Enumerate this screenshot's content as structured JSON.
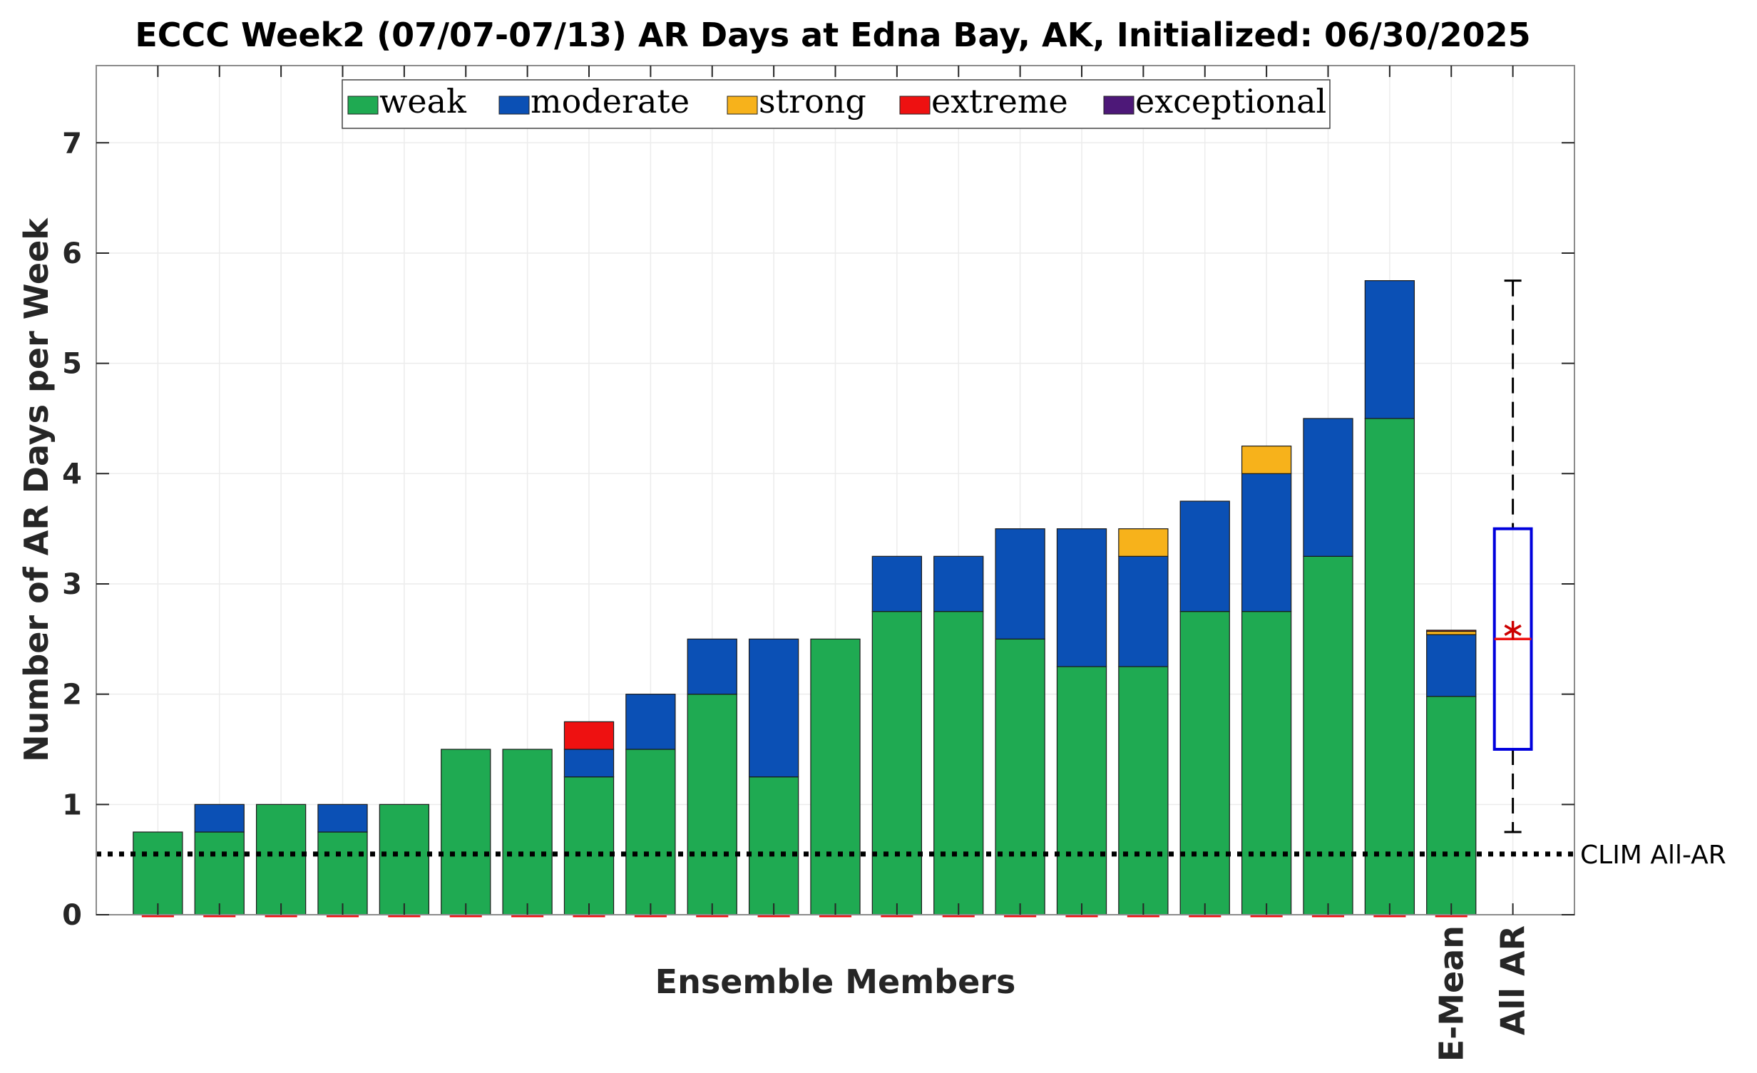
{
  "chart_data": {
    "type": "bar",
    "stacked": true,
    "title": "ECCC Week2 (07/07-07/13) AR Days at Edna Bay, AK, Initialized: 06/30/2025",
    "xlabel": "Ensemble Members",
    "ylabel": "Number of AR Days per Week",
    "ylim": [
      0,
      7.7
    ],
    "yticks": [
      0,
      1,
      2,
      3,
      4,
      5,
      6,
      7
    ],
    "grid": true,
    "legend_position": "top-center",
    "categories": [
      "",
      "",
      "",
      "",
      "",
      "",
      "",
      "",
      "",
      "",
      "",
      "",
      "",
      "",
      "",
      "",
      "",
      "",
      "",
      "",
      "",
      "E-Mean"
    ],
    "series": [
      {
        "name": "weak",
        "color": "#1FAA52",
        "values": [
          0.75,
          0.75,
          1.0,
          0.75,
          1.0,
          1.5,
          1.5,
          1.25,
          1.5,
          2.0,
          1.25,
          2.5,
          2.75,
          2.75,
          2.5,
          2.25,
          2.25,
          2.75,
          2.75,
          3.25,
          4.5,
          1.98
        ]
      },
      {
        "name": "moderate",
        "color": "#0B50B5",
        "values": [
          0,
          0.25,
          0,
          0.25,
          0,
          0,
          0,
          0.25,
          0.5,
          0.5,
          1.25,
          0,
          0.5,
          0.5,
          1.0,
          1.25,
          1.0,
          1.0,
          1.25,
          1.25,
          1.25,
          0.56
        ]
      },
      {
        "name": "strong",
        "color": "#F7B21B",
        "values": [
          0,
          0,
          0,
          0,
          0,
          0,
          0,
          0,
          0,
          0,
          0,
          0,
          0,
          0,
          0,
          0,
          0.25,
          0,
          0.25,
          0,
          0,
          0.03
        ]
      },
      {
        "name": "extreme",
        "color": "#EE1111",
        "values": [
          0,
          0,
          0,
          0,
          0,
          0,
          0,
          0.25,
          0,
          0,
          0,
          0,
          0,
          0,
          0,
          0,
          0,
          0,
          0,
          0,
          0,
          0.01
        ]
      },
      {
        "name": "exceptional",
        "color": "#4D1878",
        "values": [
          0,
          0,
          0,
          0,
          0,
          0,
          0,
          0,
          0,
          0,
          0,
          0,
          0,
          0,
          0,
          0,
          0,
          0,
          0,
          0,
          0,
          0
        ]
      }
    ],
    "boxplot": {
      "label": "All AR",
      "min": 0.75,
      "q1": 1.5,
      "median": 2.5,
      "q3": 3.5,
      "max": 5.75,
      "mean": 2.58,
      "box_color": "#0000DD",
      "median_color": "#EE1111",
      "mean_marker_color": "#CC0000"
    },
    "reference_line": {
      "label": "CLIM All-AR",
      "value": 0.55,
      "style": "dotted",
      "color": "#000000"
    }
  }
}
